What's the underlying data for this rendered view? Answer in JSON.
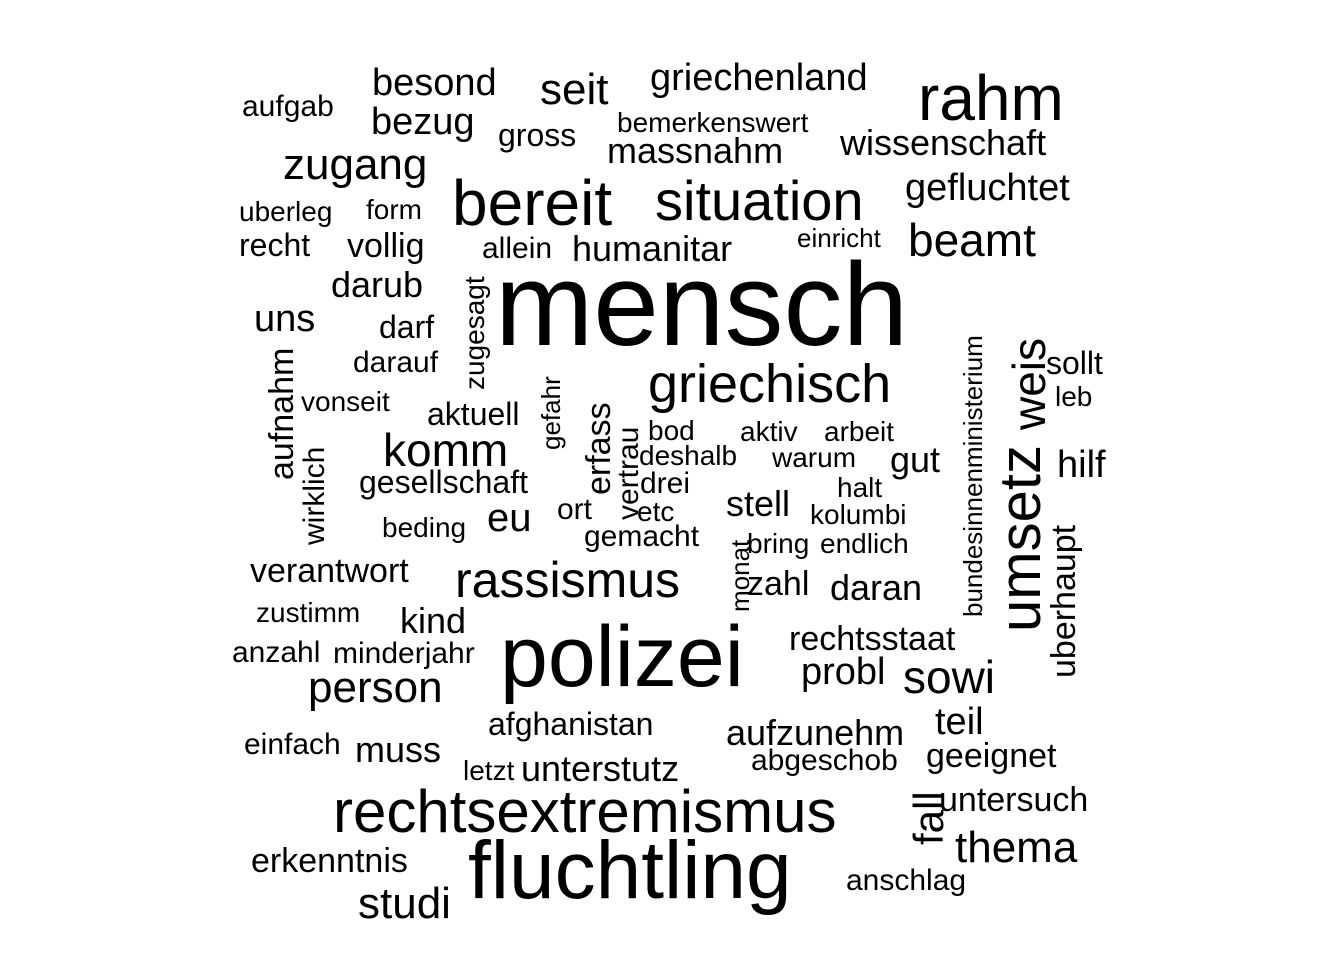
{
  "wordcloud": {
    "text_color": "#000000",
    "background": "#ffffff",
    "words": [
      {
        "text": "mensch"
      },
      {
        "text": "polizei"
      },
      {
        "text": "fluchtling"
      },
      {
        "text": "rechtsextremismus"
      },
      {
        "text": "bereit"
      },
      {
        "text": "situation"
      },
      {
        "text": "rahm"
      },
      {
        "text": "griechisch"
      },
      {
        "text": "umsetz"
      },
      {
        "text": "rassismus"
      },
      {
        "text": "weis"
      },
      {
        "text": "komm"
      },
      {
        "text": "zugang"
      },
      {
        "text": "person"
      },
      {
        "text": "beamt"
      },
      {
        "text": "sowi"
      },
      {
        "text": "thema"
      },
      {
        "text": "griechenland"
      },
      {
        "text": "seit"
      },
      {
        "text": "besond"
      },
      {
        "text": "bezug"
      },
      {
        "text": "humanitar"
      },
      {
        "text": "massnahm"
      },
      {
        "text": "wissenschaft"
      },
      {
        "text": "gefluchtet"
      },
      {
        "text": "studi"
      },
      {
        "text": "darub"
      },
      {
        "text": "fall"
      },
      {
        "text": "unterstutz"
      },
      {
        "text": "aufzunehm"
      },
      {
        "text": "untersuch"
      },
      {
        "text": "geeignet"
      },
      {
        "text": "verantwort"
      },
      {
        "text": "hilf"
      },
      {
        "text": "stell"
      },
      {
        "text": "zahl"
      },
      {
        "text": "daran"
      },
      {
        "text": "kind"
      },
      {
        "text": "eu"
      },
      {
        "text": "rechtsstaat"
      },
      {
        "text": "probl"
      },
      {
        "text": "teil"
      },
      {
        "text": "muss"
      },
      {
        "text": "afghanistan"
      },
      {
        "text": "erkenntnis"
      },
      {
        "text": "uns"
      },
      {
        "text": "vollig"
      },
      {
        "text": "gesellschaft"
      },
      {
        "text": "aktuell"
      },
      {
        "text": "gross"
      },
      {
        "text": "bemerkenswert"
      },
      {
        "text": "anschlag"
      },
      {
        "text": "abgeschob"
      },
      {
        "text": "uberhaupt"
      },
      {
        "text": "gut"
      },
      {
        "text": "darf"
      },
      {
        "text": "darauf"
      },
      {
        "text": "allein"
      },
      {
        "text": "erfass"
      },
      {
        "text": "aufnahm"
      },
      {
        "text": "sollt"
      },
      {
        "text": "minderjahr"
      },
      {
        "text": "anzahl"
      },
      {
        "text": "zustimm"
      },
      {
        "text": "einfach"
      },
      {
        "text": "gemacht"
      },
      {
        "text": "aufgab"
      },
      {
        "text": "recht"
      },
      {
        "text": "uberleg"
      },
      {
        "text": "form"
      },
      {
        "text": "einricht"
      },
      {
        "text": "vonseit"
      },
      {
        "text": "wirklich"
      },
      {
        "text": "beding"
      },
      {
        "text": "ort"
      },
      {
        "text": "drei"
      },
      {
        "text": "deshalb"
      },
      {
        "text": "bod"
      },
      {
        "text": "aktiv"
      },
      {
        "text": "arbeit"
      },
      {
        "text": "warum"
      },
      {
        "text": "halt"
      },
      {
        "text": "kolumbi"
      },
      {
        "text": "bring"
      },
      {
        "text": "endlich"
      },
      {
        "text": "etc"
      },
      {
        "text": "letzt"
      },
      {
        "text": "leb"
      },
      {
        "text": "vertrau"
      },
      {
        "text": "gefahr"
      },
      {
        "text": "zugesagt"
      },
      {
        "text": "monat"
      },
      {
        "text": "bundesinnenministerium"
      }
    ]
  }
}
